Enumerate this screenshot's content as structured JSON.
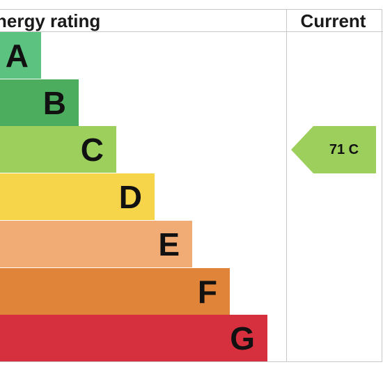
{
  "header": {
    "title": "nergy rating",
    "current_label": "Current"
  },
  "chart_data": {
    "type": "bar",
    "bands": [
      {
        "letter": "A",
        "color": "#5bc27f"
      },
      {
        "letter": "B",
        "color": "#4cad5f"
      },
      {
        "letter": "C",
        "color": "#9dcf5c"
      },
      {
        "letter": "D",
        "color": "#f7d54a"
      },
      {
        "letter": "E",
        "color": "#f0ac74"
      },
      {
        "letter": "F",
        "color": "#e0843a"
      },
      {
        "letter": "G",
        "color": "#d6303f"
      }
    ],
    "current": {
      "value": 71,
      "band": "C",
      "label": "71  C",
      "color": "#9dcf5c"
    }
  }
}
